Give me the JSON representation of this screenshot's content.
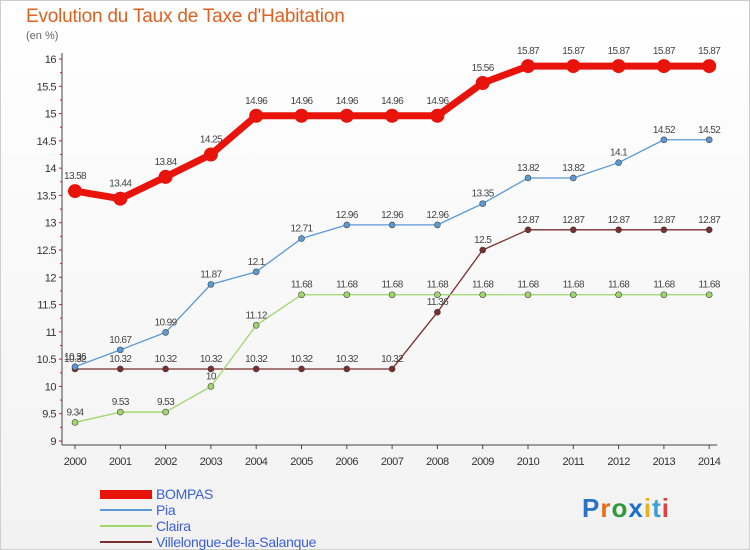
{
  "header": {
    "title": "Evolution du Taux de Taxe d'Habitation",
    "subtitle": "(en %)"
  },
  "brand": {
    "text": "Proxiti",
    "letter_colors": [
      "#2a74c8",
      "#e86a1c",
      "#2f9a3a",
      "#1c6fd0",
      "#e8b020",
      "#3aa0d8",
      "#e04040"
    ]
  },
  "chart_data": {
    "type": "line",
    "title": "Evolution du Taux de Taxe d'Habitation",
    "subtitle": "(en %)",
    "xlabel": "",
    "ylabel": "",
    "x": [
      "2000",
      "2001",
      "2002",
      "2003",
      "2004",
      "2005",
      "2006",
      "2007",
      "2008",
      "2009",
      "2010",
      "2011",
      "2012",
      "2013",
      "2014"
    ],
    "ylim": [
      9,
      16
    ],
    "y_ticks": [
      "9",
      "9.5",
      "10",
      "10.5",
      "11",
      "11.5",
      "12",
      "12.5",
      "13",
      "13.5",
      "14",
      "14.5",
      "15",
      "15.5",
      "16"
    ],
    "grid": false,
    "legend_position": "bottom-left",
    "series": [
      {
        "name": "BOMPAS",
        "color": "#e8140c",
        "values": [
          13.58,
          13.44,
          13.84,
          14.25,
          14.96,
          14.96,
          14.96,
          14.96,
          14.96,
          15.56,
          15.87,
          15.87,
          15.87,
          15.87,
          15.87
        ],
        "labels": [
          "13.58",
          "13.44",
          "13.84",
          "14.25",
          "14.96",
          "14.96",
          "14.96",
          "14.96",
          "14.96",
          "15.56",
          "15.87",
          "15.87",
          "15.87",
          "15.87",
          "15.87"
        ]
      },
      {
        "name": "Pia",
        "color": "#5a9ad4",
        "values": [
          10.36,
          10.67,
          10.99,
          11.87,
          12.1,
          12.71,
          12.96,
          12.96,
          12.96,
          13.35,
          13.82,
          13.82,
          14.1,
          14.52,
          14.52
        ],
        "labels": [
          "10.36",
          "10.67",
          "10.99",
          "11.87",
          "12.1",
          "12.71",
          "12.96",
          "12.96",
          "12.96",
          "13.35",
          "13.82",
          "13.82",
          "14.1",
          "14.52",
          "14.52"
        ]
      },
      {
        "name": "Claira",
        "color": "#9fd66a",
        "values": [
          9.34,
          9.53,
          9.53,
          10,
          11.12,
          11.68,
          11.68,
          11.68,
          11.68,
          11.68,
          11.68,
          11.68,
          11.68,
          11.68,
          11.68
        ],
        "labels": [
          "9.34",
          "9.53",
          "9.53",
          "10",
          "11.12",
          "11.68",
          "11.68",
          "11.68",
          "11.68",
          "11.68",
          "11.68",
          "11.68",
          "11.68",
          "11.68",
          "11.68"
        ]
      },
      {
        "name": "Villelongue-de-la-Salanque",
        "color": "#7a2e2e",
        "values": [
          10.32,
          10.32,
          10.32,
          10.32,
          10.32,
          10.32,
          10.32,
          10.32,
          11.36,
          12.5,
          12.87,
          12.87,
          12.87,
          12.87,
          12.87
        ],
        "labels": [
          "10.32",
          "10.32",
          "10.32",
          "10.32",
          "10.32",
          "10.32",
          "10.32",
          "10.32",
          "11.36",
          "12.5",
          "12.87",
          "12.87",
          "12.87",
          "12.87",
          "12.87"
        ]
      }
    ]
  }
}
